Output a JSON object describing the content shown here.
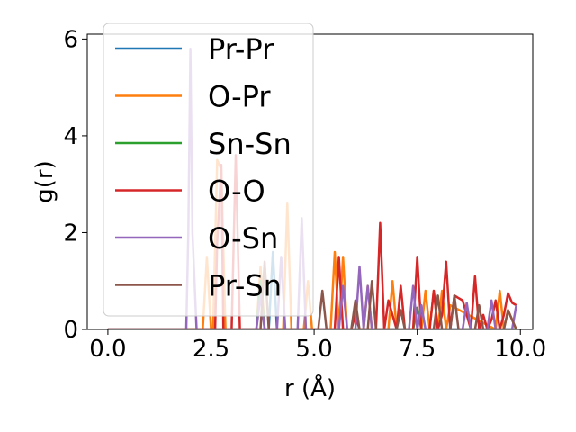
{
  "chart_data": {
    "type": "line",
    "title": "",
    "xlabel": "r (Å)",
    "ylabel": "g(r)",
    "xlim": [
      -0.5,
      10.3
    ],
    "ylim": [
      0,
      6.1
    ],
    "xticks": [
      0.0,
      2.5,
      5.0,
      7.5,
      10.0
    ],
    "xtick_labels": [
      "0.0",
      "2.5",
      "5.0",
      "7.5",
      "10.0"
    ],
    "yticks": [
      0,
      2,
      4,
      6
    ],
    "ytick_labels": [
      "0",
      "2",
      "4",
      "6"
    ],
    "grid": false,
    "legend_position": "top-left",
    "series": [
      {
        "name": "Pr-Pr",
        "color": "#1f77b4",
        "x": [
          0.0,
          3.9,
          4.0,
          4.1,
          4.2,
          9.9
        ],
        "y": [
          0,
          0,
          1.6,
          0,
          0,
          0
        ]
      },
      {
        "name": "O-Pr",
        "color": "#ff7f0e",
        "x": [
          0.0,
          2.3,
          2.4,
          2.5,
          2.55,
          2.65,
          2.75,
          2.85,
          3.6,
          3.7,
          3.8,
          4.25,
          4.35,
          4.45,
          4.75,
          4.85,
          4.95,
          5.4,
          5.5,
          5.6,
          5.7,
          5.8,
          6.2,
          6.3,
          6.4,
          6.8,
          6.9,
          7.0,
          7.6,
          7.7,
          7.8,
          7.9,
          8.0,
          8.1,
          8.2,
          8.3,
          9.4,
          9.5,
          9.6,
          9.7,
          9.9
        ],
        "y": [
          0,
          0,
          1.5,
          0,
          0,
          3.5,
          3.3,
          0,
          0,
          1.3,
          0,
          0,
          2.6,
          0,
          0,
          1.0,
          0,
          0,
          1.6,
          0,
          1.5,
          0,
          0,
          0.9,
          0,
          0,
          1.0,
          0,
          0,
          0.8,
          0,
          0.8,
          0,
          0.8,
          0,
          0.5,
          0,
          0.8,
          0,
          0.4,
          0
        ]
      },
      {
        "name": "Sn-Sn",
        "color": "#2ca02c",
        "x": [
          0.0,
          3.6,
          3.7,
          3.8,
          7.4,
          7.5,
          7.6,
          9.9
        ],
        "y": [
          0,
          0,
          1.0,
          0,
          0,
          0.45,
          0,
          0
        ]
      },
      {
        "name": "O-O",
        "color": "#d62728",
        "x": [
          0.0,
          2.6,
          2.65,
          2.75,
          2.8,
          3.0,
          3.1,
          3.2,
          3.3,
          5.5,
          5.6,
          5.7,
          5.9,
          6.0,
          6.1,
          6.5,
          6.6,
          6.7,
          6.8,
          7.0,
          7.1,
          7.2,
          7.4,
          7.5,
          7.6,
          7.8,
          7.9,
          8.0,
          8.1,
          8.2,
          8.3,
          8.4,
          8.5,
          8.6,
          8.8,
          8.9,
          9.0,
          9.1,
          9.2,
          9.3,
          9.4,
          9.5,
          9.6,
          9.7,
          9.8,
          9.9
        ],
        "y": [
          0,
          0,
          1.8,
          3.4,
          0,
          0,
          3.6,
          0,
          0,
          0,
          1.5,
          0,
          0,
          0.3,
          0,
          0,
          2.2,
          0,
          0.6,
          0,
          0.9,
          0,
          0,
          1.5,
          0,
          0,
          0.8,
          0,
          0.3,
          1.4,
          0,
          0.7,
          0.65,
          0.6,
          0,
          1.1,
          0,
          0.3,
          0,
          0.2,
          0.6,
          0,
          0.3,
          0.75,
          0.55,
          0.5
        ]
      },
      {
        "name": "O-Sn",
        "color": "#9467bd",
        "x": [
          0.0,
          1.9,
          1.95,
          2.0,
          2.05,
          2.15,
          3.6,
          3.7,
          3.8,
          4.1,
          4.2,
          4.3,
          4.6,
          4.7,
          4.8,
          5.6,
          5.7,
          5.8,
          6.0,
          6.1,
          6.2,
          6.3,
          6.4,
          6.5,
          7.3,
          7.4,
          7.5,
          7.6,
          7.7,
          8.6,
          8.7,
          8.8,
          9.2,
          9.3,
          9.4,
          9.8,
          9.9
        ],
        "y": [
          0,
          0,
          2.0,
          5.8,
          2.0,
          0,
          0,
          0.7,
          0,
          0,
          1.5,
          0,
          0,
          2.3,
          0,
          0,
          0.9,
          0,
          0,
          1.3,
          0,
          0.9,
          0,
          0,
          0,
          0.9,
          0,
          0.5,
          0,
          0,
          0.55,
          0,
          0,
          0.6,
          0,
          0,
          0.5
        ]
      },
      {
        "name": "Pr-Sn",
        "color": "#8c564b",
        "x": [
          0.0,
          3.7,
          3.8,
          3.9,
          5.1,
          5.2,
          5.3,
          5.9,
          6.0,
          6.1,
          6.3,
          6.4,
          6.5,
          7.0,
          7.1,
          7.2,
          7.9,
          8.0,
          8.1,
          8.3,
          8.4,
          8.5,
          8.9,
          9.0,
          9.1,
          9.6,
          9.7,
          9.9
        ],
        "y": [
          0,
          0,
          1.4,
          0,
          0,
          0.8,
          0,
          0,
          0.6,
          0,
          0,
          1.0,
          0,
          0,
          0.4,
          0,
          0,
          0.7,
          0,
          0,
          0.7,
          0,
          0,
          0.5,
          0,
          0,
          0.4,
          0
        ]
      }
    ]
  }
}
